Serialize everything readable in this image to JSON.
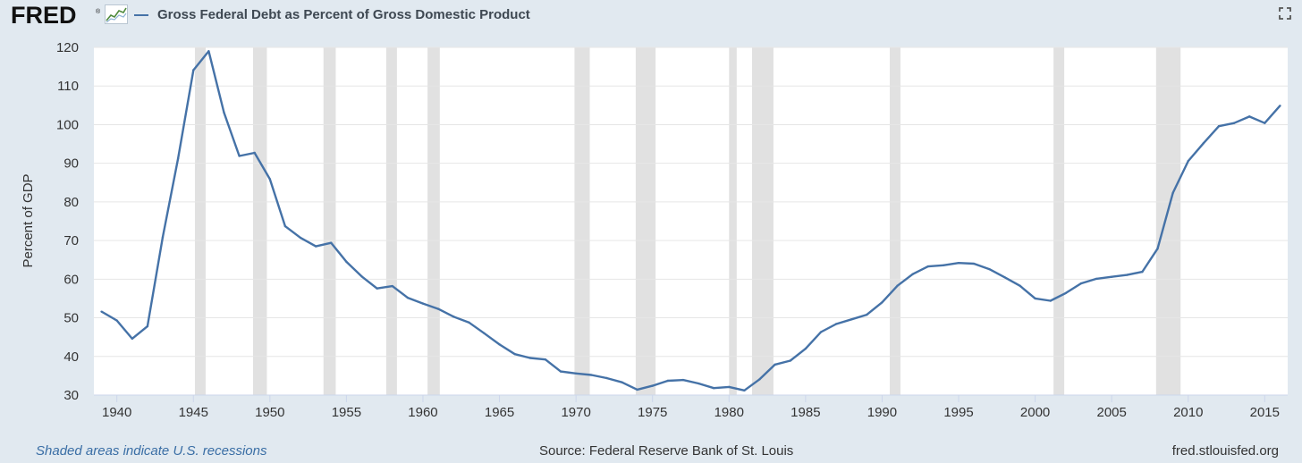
{
  "header": {
    "logo_text": "FRED",
    "logo_reg": "®",
    "series_title": "Gross Federal Debt as Percent of Gross Domestic Product",
    "icons": [
      "fred-chart-mark-icon",
      "expand-icon"
    ]
  },
  "footer": {
    "recession_note": "Shaded areas indicate U.S. recessions",
    "source": "Source: Federal Reserve Bank of St. Louis",
    "site": "fred.stlouisfed.org"
  },
  "colors": {
    "background": "#e1e9f0",
    "plot_background": "#ffffff",
    "line": "#4572a7",
    "recession": "#e1e1e1",
    "grid": "#e6e6e6"
  },
  "chart_data": {
    "type": "line",
    "title": "Gross Federal Debt as Percent of Gross Domestic Product",
    "xlabel": "",
    "ylabel": "Percent of GDP",
    "xlim": [
      1938.5,
      2016.5
    ],
    "ylim": [
      30,
      120
    ],
    "x_ticks": [
      1940,
      1945,
      1950,
      1955,
      1960,
      1965,
      1970,
      1975,
      1980,
      1985,
      1990,
      1995,
      2000,
      2005,
      2010,
      2015
    ],
    "y_ticks": [
      30,
      40,
      50,
      60,
      70,
      80,
      90,
      100,
      110,
      120
    ],
    "grid": true,
    "legend": "top-left",
    "recessions": [
      [
        1945.1,
        1945.8
      ],
      [
        1948.9,
        1949.8
      ],
      [
        1953.5,
        1954.3
      ],
      [
        1957.6,
        1958.3
      ],
      [
        1960.3,
        1961.1
      ],
      [
        1969.9,
        1970.9
      ],
      [
        1973.9,
        1975.2
      ],
      [
        1980.0,
        1980.5
      ],
      [
        1981.5,
        1982.9
      ],
      [
        1990.5,
        1991.2
      ],
      [
        2001.2,
        2001.9
      ],
      [
        2007.9,
        2009.5
      ]
    ],
    "series": [
      {
        "x": [
          1939,
          1940,
          1941,
          1942,
          1943,
          1944,
          1945,
          1946,
          1947,
          1948,
          1949,
          1950,
          1951,
          1952,
          1953,
          1954,
          1955,
          1956,
          1957,
          1958,
          1959,
          1960,
          1961,
          1962,
          1963,
          1964,
          1965,
          1966,
          1967,
          1968,
          1969,
          1970,
          1971,
          1972,
          1973,
          1974,
          1975,
          1976,
          1977,
          1978,
          1979,
          1980,
          1981,
          1982,
          1983,
          1984,
          1985,
          1986,
          1987,
          1988,
          1989,
          1990,
          1991,
          1992,
          1993,
          1994,
          1995,
          1996,
          1997,
          1998,
          1999,
          2000,
          2001,
          2002,
          2003,
          2004,
          2005,
          2006,
          2007,
          2008,
          2009,
          2010,
          2011,
          2012,
          2013,
          2014,
          2015,
          2016
        ],
        "values": [
          51.6,
          49.3,
          44.6,
          47.8,
          70.9,
          91.2,
          114.1,
          119.0,
          103.1,
          91.9,
          92.7,
          85.9,
          73.7,
          70.7,
          68.5,
          69.4,
          64.5,
          60.7,
          57.6,
          58.2,
          55.2,
          53.7,
          52.3,
          50.3,
          48.8,
          46.0,
          43.1,
          40.6,
          39.6,
          39.2,
          36.1,
          35.6,
          35.2,
          34.4,
          33.3,
          31.4,
          32.4,
          33.7,
          33.9,
          33.0,
          31.8,
          32.1,
          31.2,
          34.1,
          37.9,
          38.9,
          42.0,
          46.3,
          48.4,
          49.6,
          50.8,
          54.0,
          58.3,
          61.3,
          63.3,
          63.6,
          64.2,
          64.0,
          62.6,
          60.5,
          58.3,
          55.0,
          54.4,
          56.4,
          58.9,
          60.1,
          60.6,
          61.1,
          61.9,
          67.9,
          82.3,
          90.6,
          95.2,
          99.6,
          100.4,
          102.1,
          100.4,
          104.9
        ]
      }
    ]
  }
}
